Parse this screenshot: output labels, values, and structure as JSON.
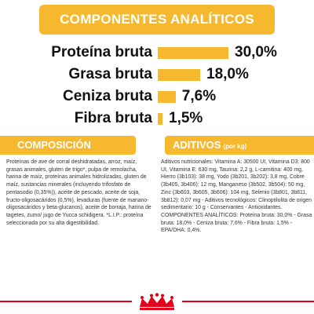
{
  "header": {
    "title": "COMPONENTES ANALÍTICOS"
  },
  "chart_data": {
    "type": "bar",
    "categories": [
      "Proteína bruta",
      "Grasa bruta",
      "Ceniza bruta",
      "Fibra bruta"
    ],
    "values": [
      30.0,
      18.0,
      7.6,
      1.5
    ],
    "value_labels": [
      "30,0%",
      "18,0%",
      "7,6%",
      "1,5%"
    ],
    "bar_color": "#f5b82e"
  },
  "composicion": {
    "title": "COMPOSICIÓN",
    "text": "Proteínas de ave de corral deshidratadas, arroz, maíz, grasas animales, gluten de trigo*, pulpa de remolacha, harina de maíz, proteínas animales hidrolizadas, gluten de maíz, sustancias minerales (incluyendo trifosfato de pentasodio (0,35%)), aceite de pescado, aceite de soja, fructo-oligosacáridos (0,5%), levaduras (fuente de manano-oligosacáridos y beta-glucanos), aceite de borraja, harina de tagetes, zumo/ jugo de Yucca schidigera. *L.I.P.: proteína seleccionada por su alta digestibilidad."
  },
  "aditivos": {
    "title": "ADITIVOS",
    "subtitle": "(por kg)",
    "text": "Aditivos nutricionales: Vitamina A: 30500 UI, Vitamina D3: 800 UI, Vitamina E: 630 mg, Taurina: 2,2 g, L-carnitina: 400 mg, Hierro (3b103): 38 mg, Yodo (3b201, 3b202): 3,8 mg, Cobre (3b405, 3b406): 12 mg, Manganeso (3b502, 3b504): 50 mg, Zinc (3b603, 3b605, 3b606): 104 mg, Selenio (3b801, 3b811, 3b812): 0,07 mg - Aditivos tecnológicos: Clinoptilolita de origen sedimentario: 10 g - Conservantes - Antioxidantes. COMPONENTES ANALÍTICOS: Proteína bruta: 30,0% - Grasa bruta: 18,0% - Ceniza bruta: 7,6% - Fibra bruta: 1,5% - EPA/DHA: 0,4%."
  },
  "colors": {
    "accent": "#f5b82e",
    "brand_red": "#e2001a"
  },
  "footer": {
    "logo": "royal-canin-crown-logo"
  }
}
